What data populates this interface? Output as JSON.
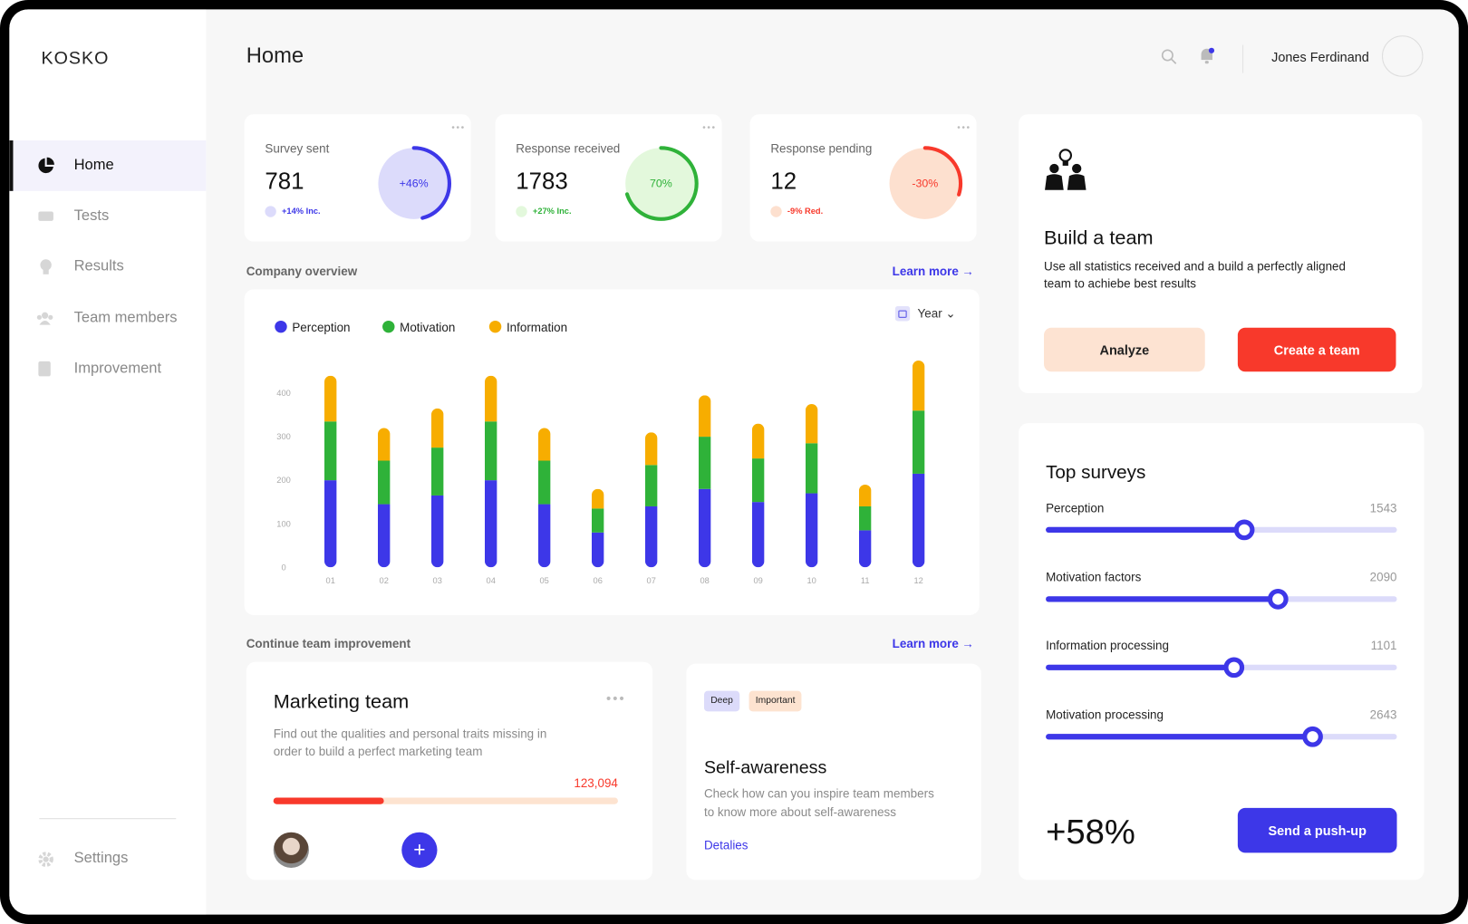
{
  "sidebar": {
    "logo": "KOSKO",
    "nav": [
      "Home",
      "Tests",
      "Results",
      "Team members",
      "Improvement"
    ],
    "settings": "Settings"
  },
  "header": {
    "title": "Home",
    "user": "Jones Ferdinand"
  },
  "stats": [
    {
      "label": "Survey sent",
      "value": 781,
      "change": "+14% Inc.",
      "gauge": {
        "value": 46,
        "label": "+46%"
      }
    },
    {
      "label": "Response received",
      "value": 1783,
      "change": "+27% Inc.",
      "gauge": {
        "value": 70,
        "label": "70%"
      }
    },
    {
      "label": "Response pending",
      "value": 12,
      "change": "-9% Red.",
      "gauge": {
        "value": -30,
        "label": "-30%"
      }
    }
  ],
  "overview": {
    "title": "Company overview",
    "link": "Learn more",
    "period": "Year"
  },
  "chart_data": {
    "type": "bar",
    "stacked": true,
    "legend": "top-left",
    "categories": [
      "01",
      "02",
      "03",
      "04",
      "05",
      "06",
      "07",
      "08",
      "09",
      "10",
      "11",
      "12"
    ],
    "series": [
      {
        "name": "Perception",
        "color": "#3d37e8",
        "values": [
          200,
          145,
          165,
          200,
          145,
          80,
          140,
          180,
          150,
          170,
          85,
          215
        ]
      },
      {
        "name": "Motivation",
        "color": "#2fb239",
        "values": [
          135,
          100,
          110,
          135,
          100,
          55,
          95,
          120,
          100,
          115,
          55,
          145
        ]
      },
      {
        "name": "Information",
        "color": "#f7ad00",
        "values": [
          105,
          75,
          90,
          105,
          75,
          45,
          75,
          95,
          80,
          90,
          50,
          115
        ]
      }
    ],
    "ylim": [
      0,
      480
    ],
    "yticks": [
      0,
      100,
      200,
      300,
      400
    ],
    "grid": false
  },
  "improvement": {
    "title": "Continue team improvement",
    "link": "Learn more",
    "card": {
      "title": "Marketing team",
      "text": [
        "Find out the qualities and personal traits missing in",
        "order to build a perfect marketing team"
      ],
      "amount": "123,094"
    },
    "article": {
      "tags": [
        "Deep",
        "Important"
      ],
      "title": "Self-awareness",
      "text": [
        "Check how can you inspire team members",
        "to know more about self-awareness"
      ],
      "link": "Detalies"
    }
  },
  "build": {
    "title": "Build a team",
    "text": [
      "Use all statistics received and a build a perfectly aligned",
      "team to achiebe best results"
    ],
    "buttons": [
      "Analyze",
      "Create a team"
    ]
  },
  "top_surveys": {
    "title": "Top surveys",
    "items": [
      {
        "name": "Perception",
        "value": 1543
      },
      {
        "name": "Motivation factors",
        "value": 2090
      },
      {
        "name": "Information processing",
        "value": 1101
      },
      {
        "name": "Motivation processing",
        "value": 2643
      }
    ],
    "total": "+58%",
    "button": "Send a push-up"
  }
}
